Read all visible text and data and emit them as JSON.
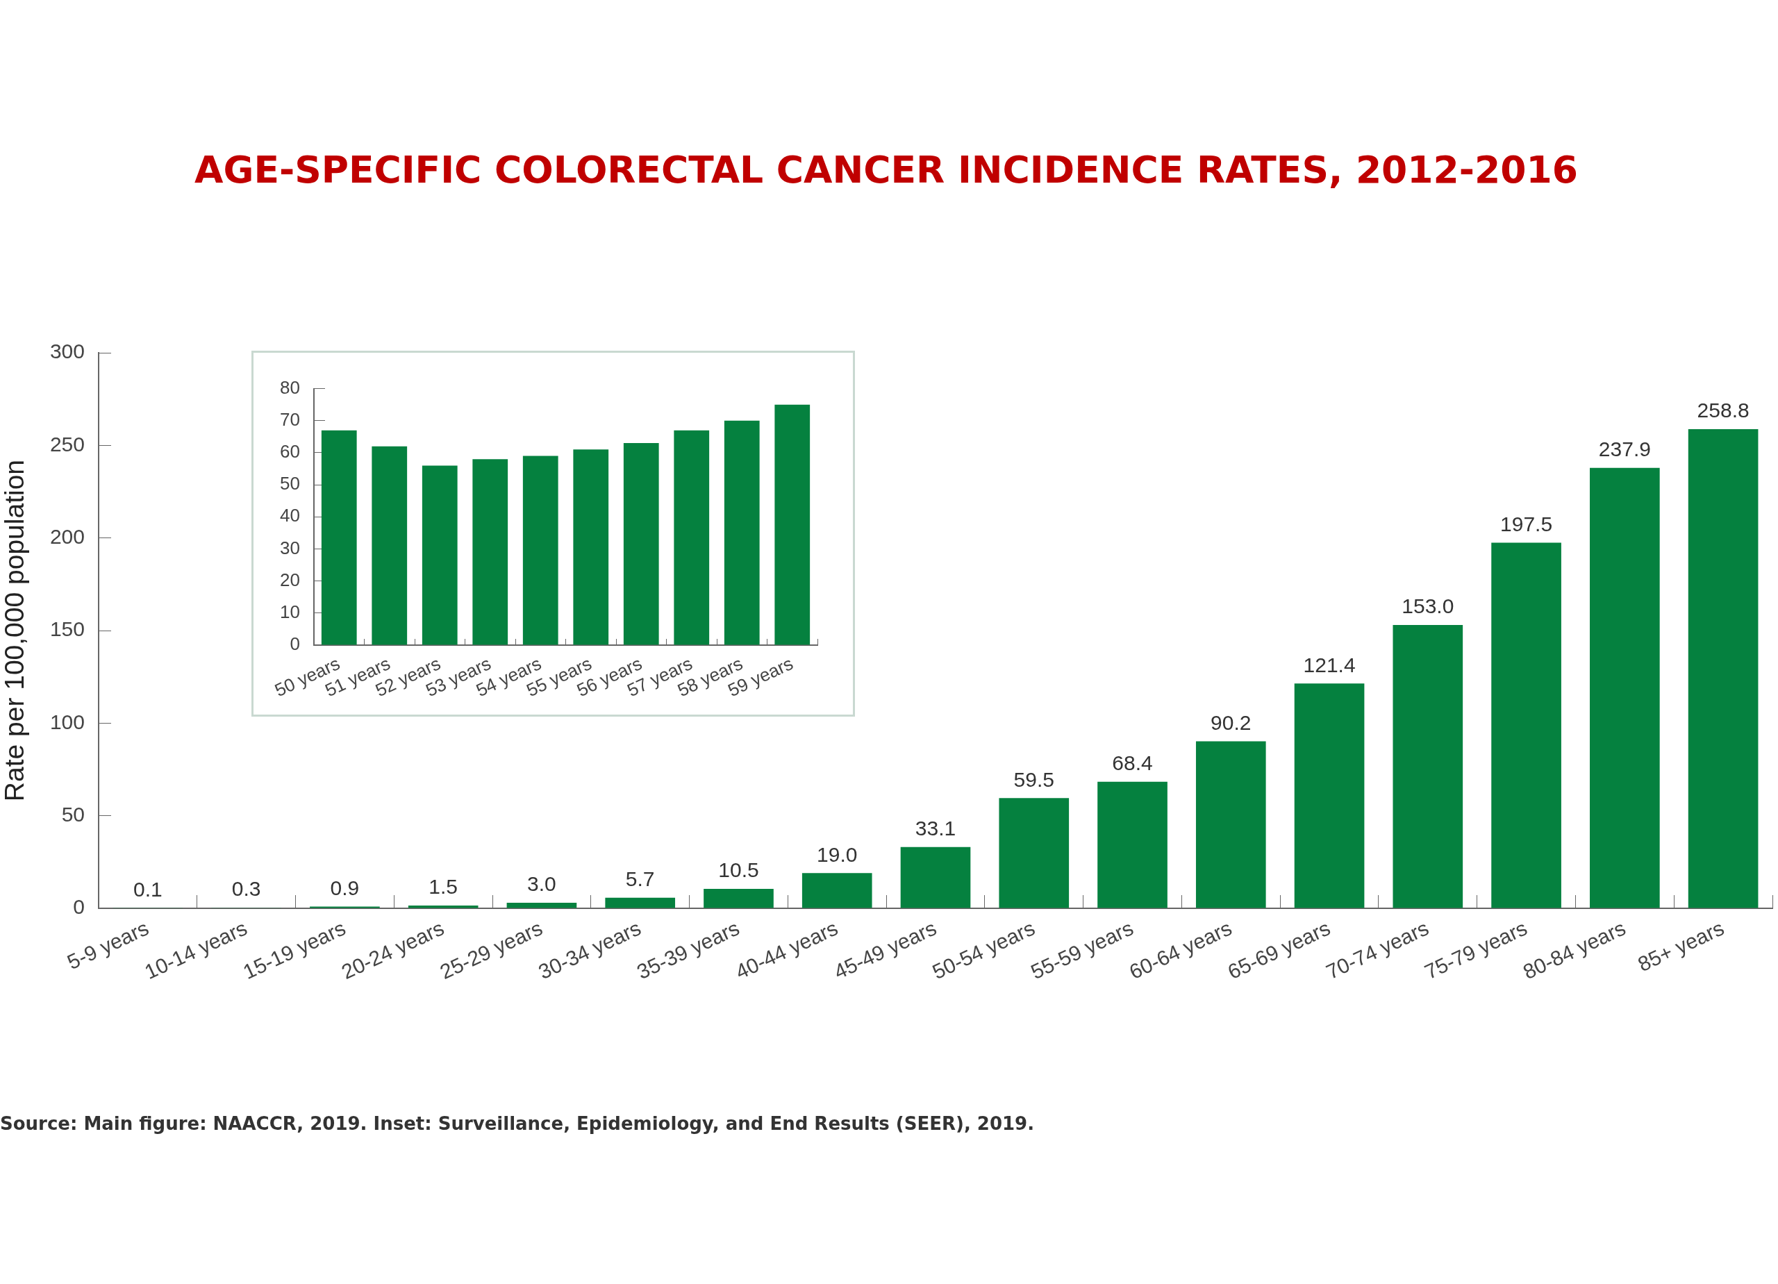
{
  "chart_data": [
    {
      "type": "bar",
      "title": "AGE-SPECIFIC COLORECTAL CANCER INCIDENCE RATES, 2012-2016",
      "ylabel": "Rate per 100,000 population",
      "categories": [
        "5-9 years",
        "10-14 years",
        "15-19 years",
        "20-24 years",
        "25-29 years",
        "30-34 years",
        "35-39 years",
        "40-44 years",
        "45-49 years",
        "50-54 years",
        "55-59 years",
        "60-64 years",
        "65-69 years",
        "70-74 years",
        "75-79 years",
        "80-84 years",
        "85+ years"
      ],
      "values": [
        0.1,
        0.3,
        0.9,
        1.5,
        3.0,
        5.7,
        10.5,
        19.0,
        33.1,
        59.5,
        68.4,
        90.2,
        121.4,
        153.0,
        197.5,
        237.9,
        258.8
      ],
      "value_labels": [
        "0.1",
        "0.3",
        "0.9",
        "1.5",
        "3.0",
        "5.7",
        "10.5",
        "19.0",
        "33.1",
        "59.5",
        "68.4",
        "90.2",
        "121.4",
        "153.0",
        "197.5",
        "237.9",
        "258.8"
      ],
      "color": "#05813f",
      "ylim": [
        0,
        300
      ],
      "yticks": [
        0,
        50,
        100,
        150,
        200,
        250,
        300
      ],
      "annotations": [
        "Source: Main figure: NAACCR, 2019. Inset: Surveillance, Epidemiology, and End Results (SEER), 2019."
      ]
    },
    {
      "type": "bar",
      "categories": [
        "50 years",
        "51 years",
        "52 years",
        "53 years",
        "54 years",
        "55 years",
        "56 years",
        "57 years",
        "58 years",
        "59 years"
      ],
      "values": [
        67,
        62,
        56,
        58,
        59,
        61,
        63,
        67,
        70,
        75
      ],
      "color": "#05813f",
      "ylim": [
        0,
        80
      ],
      "yticks": [
        0,
        10,
        20,
        30,
        40,
        50,
        60,
        70,
        80
      ]
    }
  ]
}
